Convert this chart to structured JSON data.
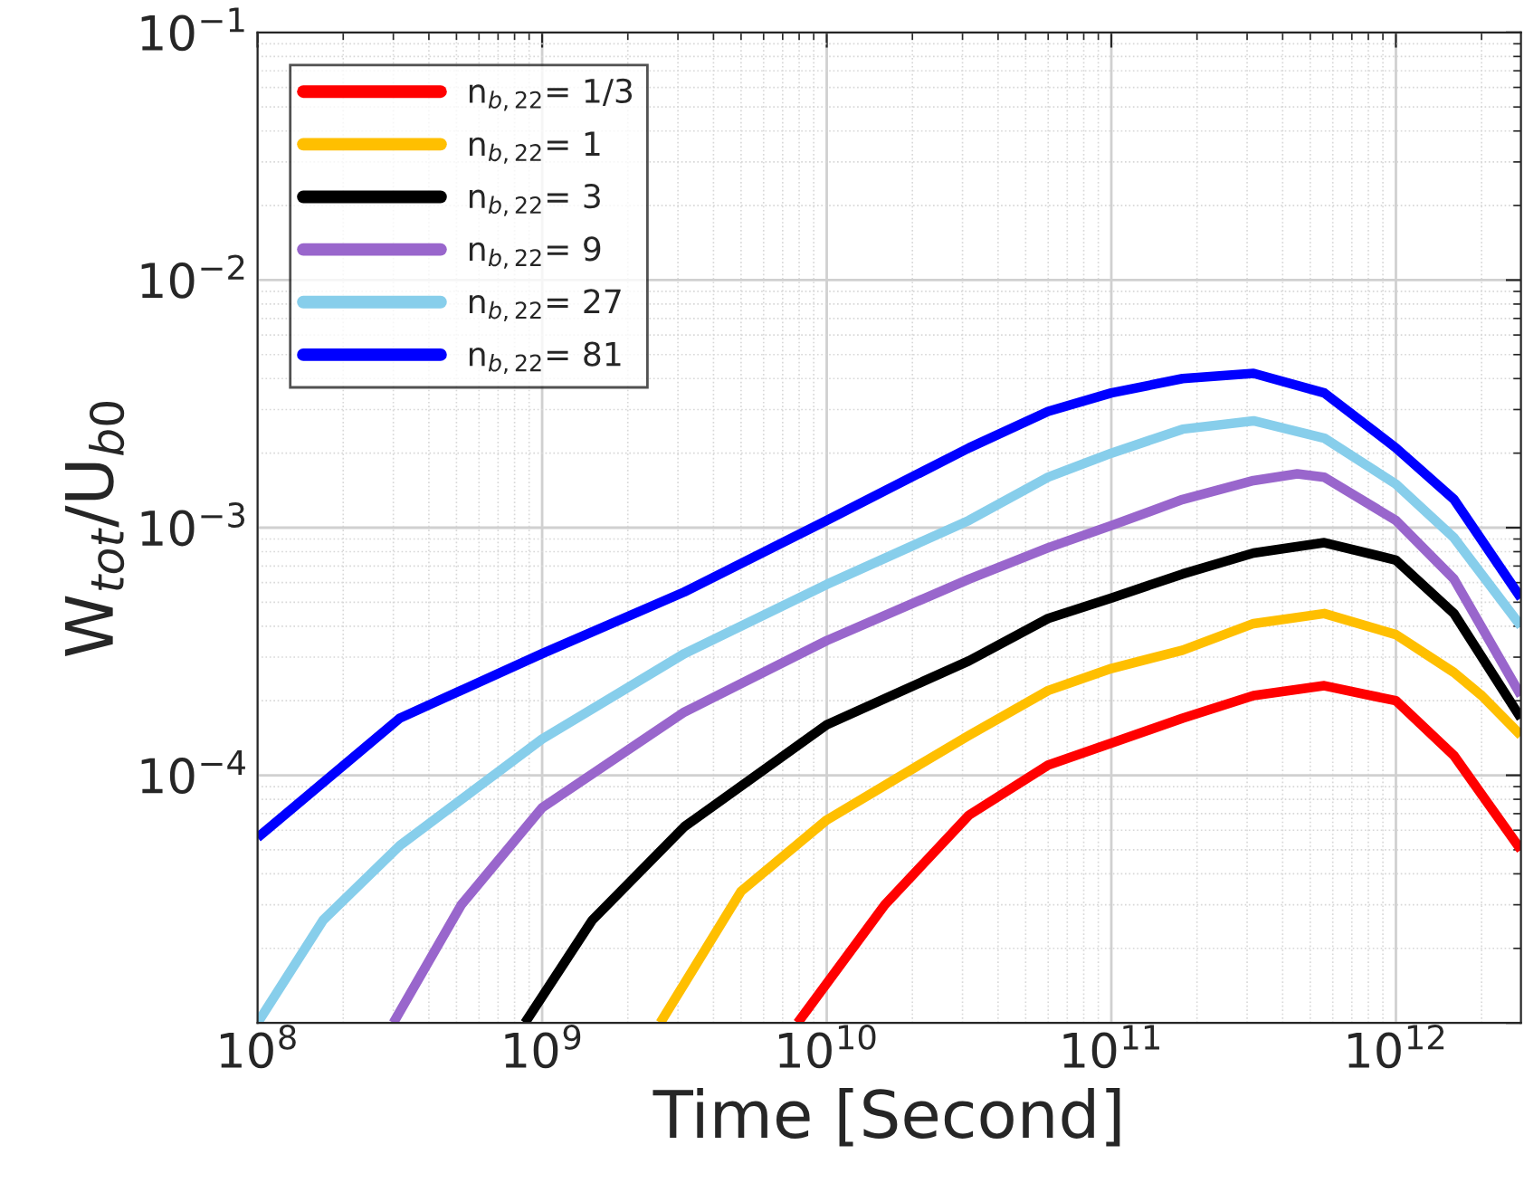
{
  "chart_data": {
    "type": "line",
    "xlabel": "Time [Second]",
    "ylabel": "W$_{tot}$/U$_{b0}$",
    "log": "xy",
    "grid": true,
    "legend": "top left",
    "line_style": "solid",
    "marker": "none",
    "xlim": [
      100000000.0,
      2750000000000.0
    ],
    "ylim": [
      1e-05,
      0.1
    ],
    "xticks": [
      {
        "value": 100000000.0,
        "label": "10$^{8}$"
      },
      {
        "value": 1000000000.0,
        "label": "10$^{9}$"
      },
      {
        "value": 10000000000.0,
        "label": "10$^{10}$"
      },
      {
        "value": 100000000000.0,
        "label": "10$^{11}$"
      },
      {
        "value": 1000000000000.0,
        "label": "10$^{12}$"
      }
    ],
    "yticks": [
      {
        "value": 1e-05,
        "label": null
      },
      {
        "value": 0.0001,
        "label": "10$^{−4}$"
      },
      {
        "value": 0.001,
        "label": "10$^{−3}$"
      },
      {
        "value": 0.01,
        "label": "10$^{−2}$"
      },
      {
        "value": 0.1,
        "label": "10$^{−1}$"
      }
    ],
    "series": [
      {
        "name": "n$_{b,22}$= 1/3",
        "color": "#ff0000",
        "x": [
          7900000000.0,
          16000000000.0,
          31600000000.0,
          60000000000.0,
          100000000000.0,
          178000000000.0,
          316000000000.0,
          560000000000.0,
          1000000000000.0,
          1600000000000.0,
          2750000000000.0
        ],
        "values": [
          1e-05,
          3e-05,
          6.9e-05,
          0.00011,
          0.000135,
          0.00017,
          0.00021,
          0.00023,
          0.0002,
          0.00012,
          5e-05
        ]
      },
      {
        "name": "n$_{b,22}$= 1",
        "color": "#ffbf00",
        "x": [
          2600000000.0,
          5000000000.0,
          10000000000.0,
          31600000000.0,
          60000000000.0,
          100000000000.0,
          178000000000.0,
          316000000000.0,
          560000000000.0,
          1000000000000.0,
          1600000000000.0,
          2000000000000.0,
          2750000000000.0
        ],
        "values": [
          1e-05,
          3.4e-05,
          6.6e-05,
          0.000145,
          0.00022,
          0.00027,
          0.00032,
          0.00041,
          0.00045,
          0.00037,
          0.00026,
          0.00021,
          0.000145
        ]
      },
      {
        "name": "n$_{b,22}$= 3",
        "color": "#000000",
        "x": [
          870000000.0,
          1500000000.0,
          3160000000.0,
          10000000000.0,
          31600000000.0,
          60000000000.0,
          100000000000.0,
          178000000000.0,
          316000000000.0,
          560000000000.0,
          1000000000000.0,
          1600000000000.0,
          2750000000000.0
        ],
        "values": [
          1e-05,
          2.6e-05,
          6.2e-05,
          0.00016,
          0.00029,
          0.00043,
          0.00052,
          0.00065,
          0.00079,
          0.00087,
          0.00074,
          0.00045,
          0.00017
        ]
      },
      {
        "name": "n$_{b,22}$= 9",
        "color": "#9966cc",
        "x": [
          300000000.0,
          520000000.0,
          1000000000.0,
          3160000000.0,
          10000000000.0,
          31600000000.0,
          60000000000.0,
          100000000000.0,
          178000000000.0,
          316000000000.0,
          450000000000.0,
          560000000000.0,
          1000000000000.0,
          1600000000000.0,
          2750000000000.0
        ],
        "values": [
          1e-05,
          3e-05,
          7.4e-05,
          0.00018,
          0.00035,
          0.00062,
          0.00083,
          0.00102,
          0.0013,
          0.00155,
          0.00165,
          0.0016,
          0.00107,
          0.00062,
          0.00021
        ]
      },
      {
        "name": "n$_{b,22}$= 27",
        "color": "#87ceeb",
        "x": [
          100000000.0,
          170000000.0,
          316000000.0,
          1000000000.0,
          3160000000.0,
          10000000000.0,
          31600000000.0,
          60000000000.0,
          100000000000.0,
          178000000000.0,
          316000000000.0,
          560000000000.0,
          1000000000000.0,
          1600000000000.0,
          2750000000000.0
        ],
        "values": [
          1e-05,
          2.6e-05,
          5.2e-05,
          0.00014,
          0.00031,
          0.00059,
          0.00107,
          0.0016,
          0.002,
          0.0025,
          0.0027,
          0.0023,
          0.0015,
          0.00091,
          0.0004
        ]
      },
      {
        "name": "n$_{b,22}$= 81",
        "color": "#0000ff",
        "x": [
          100000000.0,
          316000000.0,
          1000000000.0,
          3160000000.0,
          10000000000.0,
          31600000000.0,
          60000000000.0,
          100000000000.0,
          178000000000.0,
          316000000000.0,
          560000000000.0,
          1000000000000.0,
          1600000000000.0,
          2750000000000.0
        ],
        "values": [
          5.6e-05,
          0.00017,
          0.00031,
          0.00055,
          0.00107,
          0.0021,
          0.00295,
          0.0035,
          0.004,
          0.0042,
          0.0035,
          0.0021,
          0.0013,
          0.00052
        ]
      }
    ]
  }
}
